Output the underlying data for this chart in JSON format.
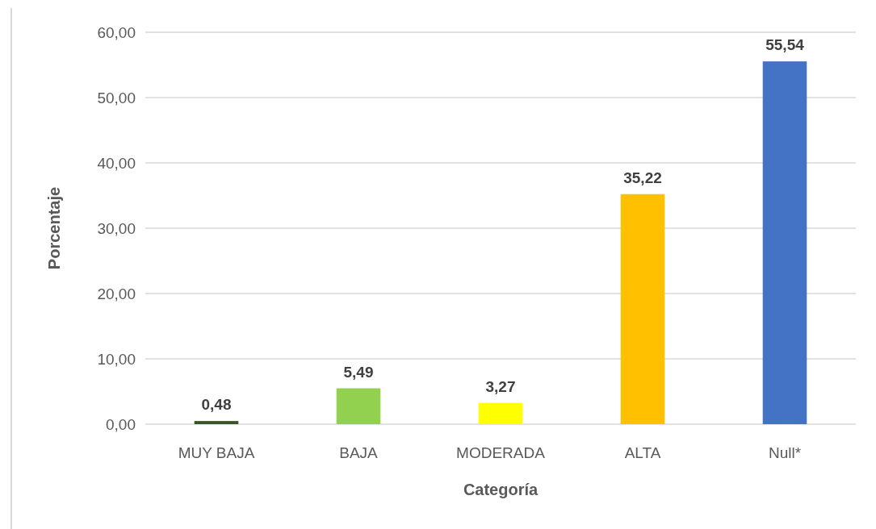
{
  "chart_data": {
    "type": "bar",
    "xlabel": "Categoría",
    "ylabel": "Porcentaje",
    "categories": [
      "MUY BAJA",
      "BAJA",
      "MODERADA",
      "ALTA",
      "Null*"
    ],
    "values": [
      0.48,
      5.49,
      3.27,
      35.22,
      55.54
    ],
    "colors": [
      "#375623",
      "#92d050",
      "#ffff00",
      "#ffc000",
      "#4472c4"
    ],
    "value_labels": [
      "0,48",
      "5,49",
      "3,27",
      "35,22",
      "55,54"
    ],
    "ylim": [
      0,
      60
    ],
    "yticks": [
      {
        "value": 0,
        "label": "0,00"
      },
      {
        "value": 10,
        "label": "10,00"
      },
      {
        "value": 20,
        "label": "20,00"
      },
      {
        "value": 30,
        "label": "30,00"
      },
      {
        "value": 40,
        "label": "40,00"
      },
      {
        "value": 50,
        "label": "50,00"
      },
      {
        "value": 60,
        "label": "60,00"
      }
    ],
    "grid": "y"
  }
}
